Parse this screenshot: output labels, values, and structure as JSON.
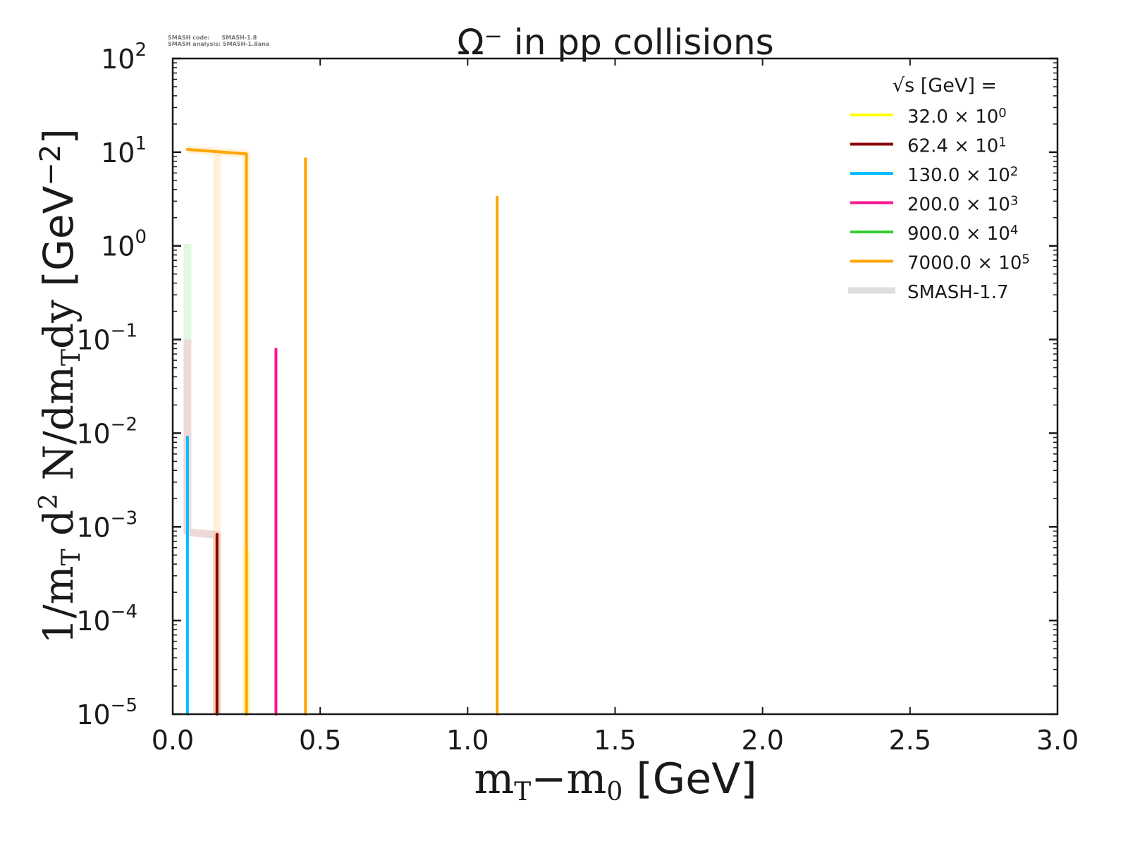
{
  "meta": {
    "code_line": "SMASH code:      SMASH-1.8",
    "analysis_line": "SMASH analysis: SMASH-1.8ana"
  },
  "chart_data": {
    "type": "line",
    "title": "Ω⁻ in pp collisions",
    "xlabel": "mT−m0 [GeV]",
    "ylabel": "1/mT d² N/dmTdy [GeV⁻²]",
    "xscale": "linear",
    "yscale": "log",
    "xlim": [
      0.0,
      3.0
    ],
    "ylim": [
      1e-05,
      100
    ],
    "x_ticks": [
      "0.0",
      "0.5",
      "1.0",
      "1.5",
      "2.0",
      "2.5",
      "3.0"
    ],
    "x_tick_values": [
      0.0,
      0.5,
      1.0,
      1.5,
      2.0,
      2.5,
      3.0
    ],
    "y_ticks": [
      {
        "base": "10",
        "exp": "2",
        "value": 100
      },
      {
        "base": "10",
        "exp": "1",
        "value": 10
      },
      {
        "base": "10",
        "exp": "0",
        "value": 1
      },
      {
        "base": "10",
        "exp": "−1",
        "value": 0.1
      },
      {
        "base": "10",
        "exp": "−2",
        "value": 0.01
      },
      {
        "base": "10",
        "exp": "−3",
        "value": 0.001
      },
      {
        "base": "10",
        "exp": "−4",
        "value": 0.0001
      },
      {
        "base": "10",
        "exp": "−5",
        "value": 1e-05
      }
    ],
    "grid": false,
    "legend": {
      "placement": "top-right",
      "title": "√s  [GeV] =",
      "entries": [
        {
          "label": "32.0",
          "scale": "10",
          "exp": "0",
          "color": "#ffff00"
        },
        {
          "label": "62.4",
          "scale": "10",
          "exp": "1",
          "color": "#8b0000"
        },
        {
          "label": "130.0",
          "scale": "10",
          "exp": "2",
          "color": "#00bfff"
        },
        {
          "label": "200.0",
          "scale": "10",
          "exp": "3",
          "color": "#ff1493"
        },
        {
          "label": "900.0",
          "scale": "10",
          "exp": "4",
          "color": "#32cd32"
        },
        {
          "label": "7000.0",
          "scale": "10",
          "exp": "5",
          "color": "#ffa500"
        },
        {
          "label": "SMASH-1.7",
          "color": "#dddddd",
          "reference": true
        }
      ]
    },
    "series": [
      {
        "name": "32.0",
        "color": "#ffff00",
        "x": [
          0.25,
          0.25
        ],
        "y": [
          4e-05,
          1e-05
        ],
        "faint": true
      },
      {
        "name": "62.4",
        "color": "#8b0000",
        "x": [
          0.15,
          0.15
        ],
        "y": [
          0.00083,
          1e-05
        ]
      },
      {
        "name": "130.0",
        "color": "#00bfff",
        "x": [
          0.05,
          0.05
        ],
        "y": [
          0.0091,
          1e-05
        ]
      },
      {
        "name": "200.0",
        "color": "#ff1493",
        "x": [
          0.35,
          0.35
        ],
        "y": [
          0.079,
          1e-05
        ]
      },
      {
        "name": "7000.0",
        "color": "#ffa500",
        "x": [
          0.05,
          0.25,
          0.25
        ],
        "y": [
          10.7,
          9.6,
          1e-05
        ]
      },
      {
        "name": "7000.0 (0.45)",
        "color": "#ffa500",
        "x": [
          0.45,
          0.45
        ],
        "y": [
          8.5,
          1e-05
        ]
      },
      {
        "name": "7000.0 (1.1)",
        "color": "#ffa500",
        "x": [
          1.1,
          1.1
        ],
        "y": [
          3.3,
          1e-05
        ]
      }
    ],
    "reference_series": [
      {
        "name": "SMASH-1.7 900.0",
        "color": "#32cd32",
        "x": [
          0.05,
          0.05
        ],
        "y": [
          1.05,
          0.1
        ]
      },
      {
        "name": "SMASH-1.7 62.4",
        "color": "#8b0000",
        "x": [
          0.05,
          0.05,
          0.15,
          0.15
        ],
        "y": [
          0.1,
          0.00088,
          0.00082,
          1e-05
        ]
      },
      {
        "name": "SMASH-1.7 7000.0",
        "color": "#ffa500",
        "x": [
          0.15,
          0.15
        ],
        "y": [
          9.5,
          1e-05
        ]
      },
      {
        "name": "SMASH-1.7 7000.0 b",
        "color": "#ffa500",
        "x": [
          0.05,
          0.25,
          0.25
        ],
        "y": [
          10.7,
          9.6,
          1e-05
        ]
      },
      {
        "name": "SMASH-1.7 32.0",
        "color": "#ffff00",
        "x": [
          0.25,
          0.25
        ],
        "y": [
          0.0006,
          1e-05
        ]
      }
    ]
  }
}
